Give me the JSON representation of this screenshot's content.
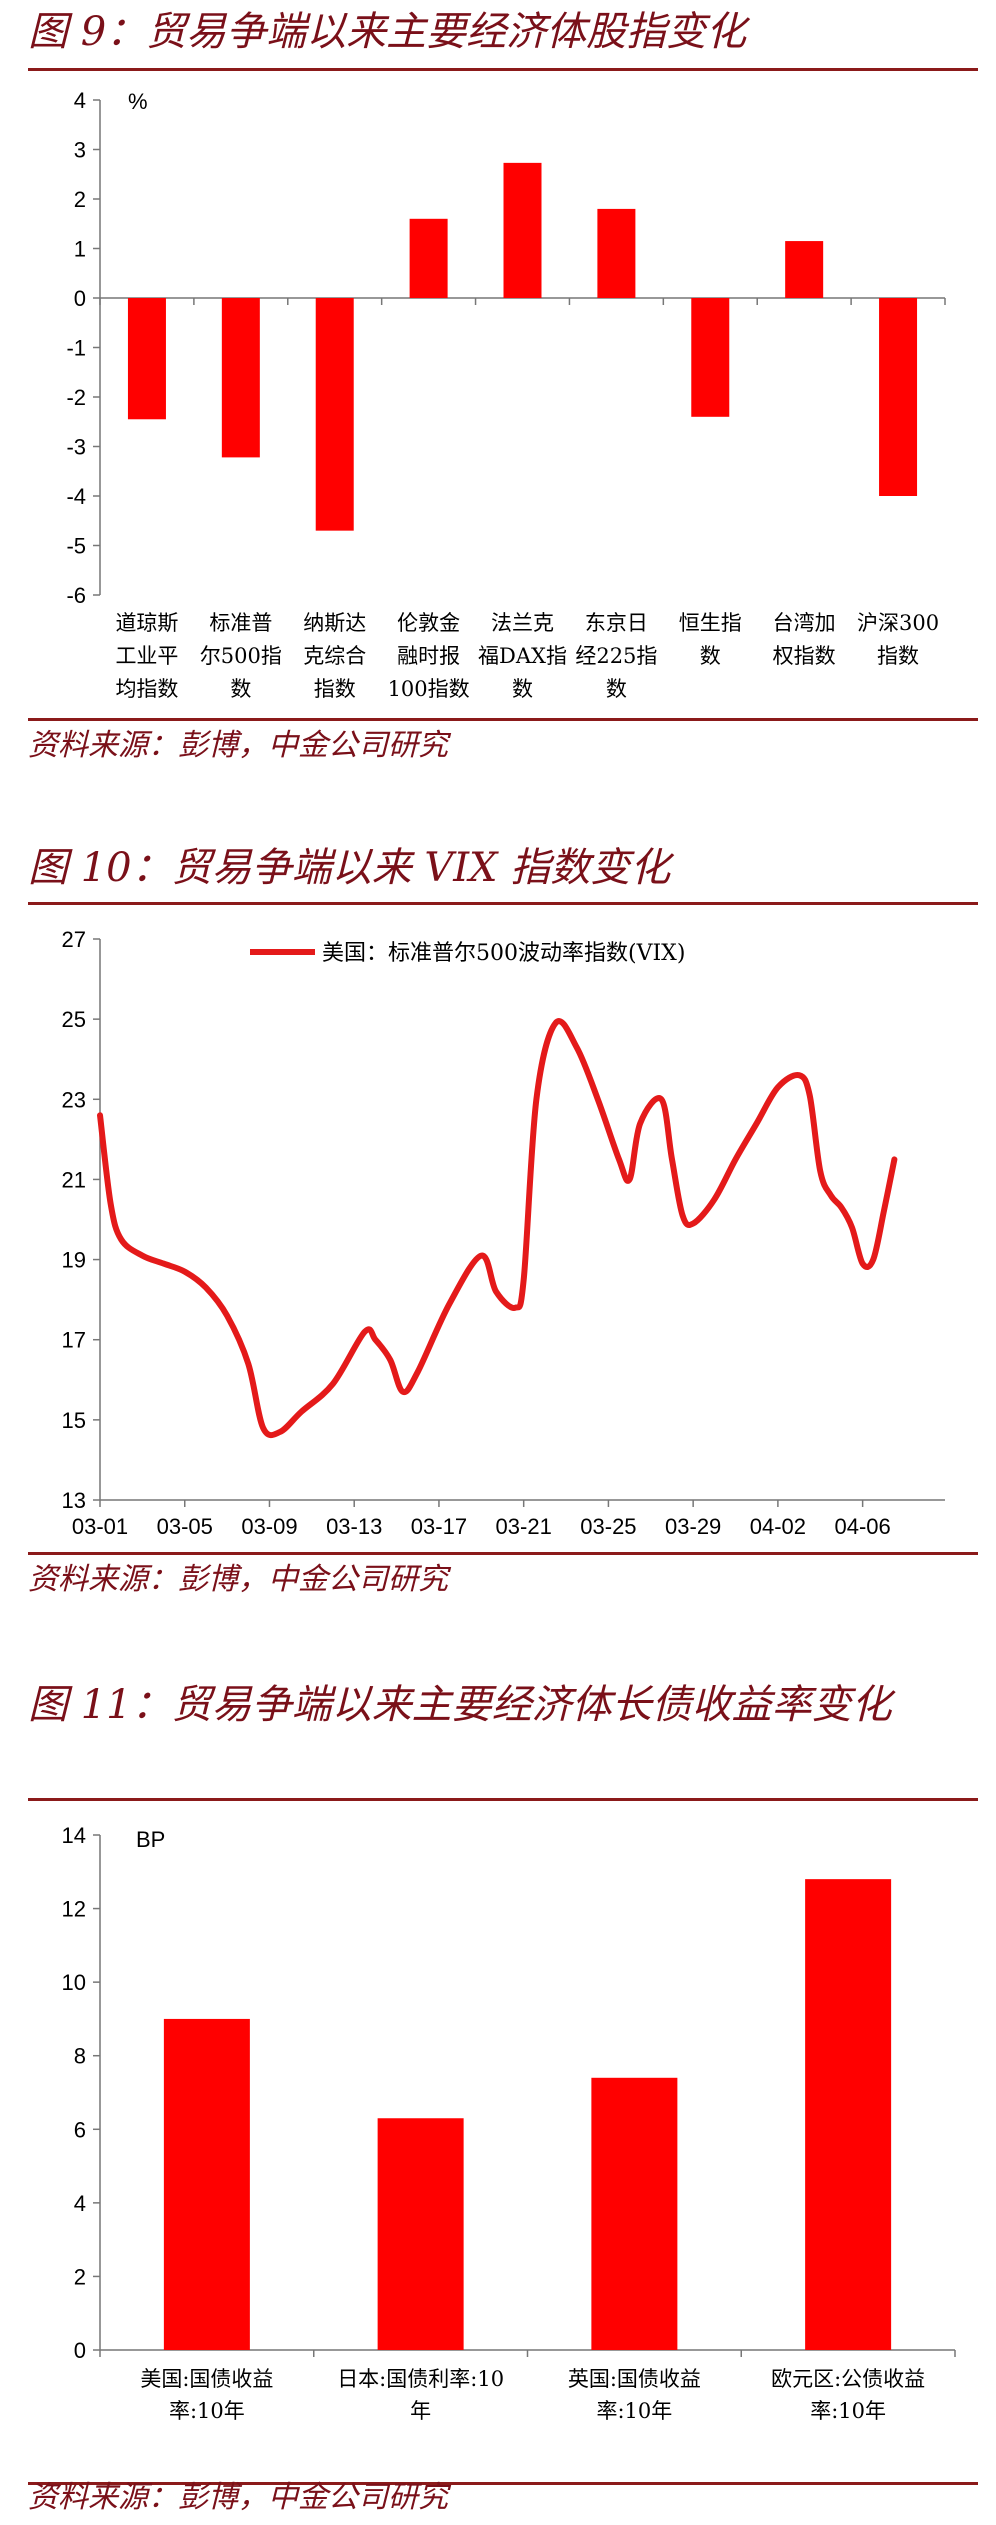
{
  "figures": [
    {
      "title": "图 9：贸易争端以来主要经济体股指变化",
      "source": "资料来源：彭博，中金公司研究"
    },
    {
      "title": "图 10：贸易争端以来 VIX 指数变化",
      "source": "资料来源：彭博，中金公司研究"
    },
    {
      "title": "图 11：贸易争端以来主要经济体长债收益率变化",
      "source": "资料来源：彭博，中金公司研究"
    }
  ],
  "chart_data": [
    {
      "type": "bar",
      "unit_label": "%",
      "categories": [
        [
          "道琼斯",
          "工业平",
          "均指数"
        ],
        [
          "标准普",
          "尔500指",
          "数"
        ],
        [
          "纳斯达",
          "克综合",
          "指数"
        ],
        [
          "伦敦金",
          "融时报",
          "100指数"
        ],
        [
          "法兰克",
          "福DAX指",
          "数"
        ],
        [
          "东京日",
          "经225指",
          "数"
        ],
        [
          "恒生指",
          "数"
        ],
        [
          "台湾加",
          "权指数"
        ],
        [
          "沪深300",
          "指数"
        ]
      ],
      "values": [
        -2.45,
        -3.22,
        -4.7,
        1.6,
        2.73,
        1.8,
        -2.4,
        1.15,
        -4.0
      ],
      "ylim": [
        -6,
        4
      ],
      "yticks": [
        4,
        3,
        2,
        1,
        0,
        -1,
        -2,
        -3,
        -4,
        -5,
        -6
      ],
      "color": "#ff0000"
    },
    {
      "type": "line",
      "series": [
        {
          "name": "美国：标准普尔500波动率指数(VIX)",
          "color": "#e41a1a",
          "points": [
            [
              0,
              22.6
            ],
            [
              0.5,
              20.4
            ],
            [
              1,
              19.5
            ],
            [
              2,
              19.1
            ],
            [
              3,
              18.9
            ],
            [
              4,
              18.7
            ],
            [
              5,
              18.3
            ],
            [
              6,
              17.6
            ],
            [
              7,
              16.4
            ],
            [
              7.7,
              14.8
            ],
            [
              8.5,
              14.7
            ],
            [
              9.5,
              15.2
            ],
            [
              11,
              15.9
            ],
            [
              12.5,
              17.2
            ],
            [
              13,
              17.0
            ],
            [
              13.7,
              16.5
            ],
            [
              14.3,
              15.7
            ],
            [
              15,
              16.2
            ],
            [
              16.5,
              17.9
            ],
            [
              18,
              19.1
            ],
            [
              18.7,
              18.2
            ],
            [
              19.6,
              17.8
            ],
            [
              20,
              18.5
            ],
            [
              20.6,
              23.0
            ],
            [
              21.5,
              24.9
            ],
            [
              22.5,
              24.3
            ],
            [
              23.5,
              23.0
            ],
            [
              24.5,
              21.5
            ],
            [
              25,
              21.0
            ],
            [
              25.5,
              22.4
            ],
            [
              26.5,
              23.0
            ],
            [
              27,
              21.5
            ],
            [
              27.5,
              20.1
            ],
            [
              28,
              19.9
            ],
            [
              29,
              20.5
            ],
            [
              30,
              21.5
            ],
            [
              31,
              22.4
            ],
            [
              32,
              23.3
            ],
            [
              33,
              23.6
            ],
            [
              33.5,
              23.1
            ],
            [
              34,
              21.2
            ],
            [
              34.5,
              20.6
            ],
            [
              35,
              20.3
            ],
            [
              35.5,
              19.8
            ],
            [
              36,
              18.9
            ],
            [
              36.5,
              19.0
            ],
            [
              37,
              20.2
            ],
            [
              37.5,
              21.5
            ]
          ]
        }
      ],
      "x_ticks": [
        "03-01",
        "03-05",
        "03-09",
        "03-13",
        "03-17",
        "03-21",
        "03-25",
        "03-29",
        "04-02",
        "04-06"
      ],
      "x_tick_positions": [
        0,
        4,
        8,
        12,
        16,
        20,
        24,
        28,
        32,
        36
      ],
      "x_max": 38,
      "ylim": [
        13,
        27
      ],
      "yticks": [
        27,
        25,
        23,
        21,
        19,
        17,
        15,
        13
      ]
    },
    {
      "type": "bar",
      "unit_label": "BP",
      "categories": [
        [
          "美国:国债收益",
          "率:10年"
        ],
        [
          "日本:国债利率:10",
          "年"
        ],
        [
          "英国:国债收益",
          "率:10年"
        ],
        [
          "欧元区:公债收益",
          "率:10年"
        ]
      ],
      "values": [
        9.0,
        6.3,
        7.4,
        12.8
      ],
      "ylim": [
        0,
        14
      ],
      "yticks": [
        14,
        12,
        10,
        8,
        6,
        4,
        2,
        0
      ],
      "color": "#ff0000"
    }
  ]
}
